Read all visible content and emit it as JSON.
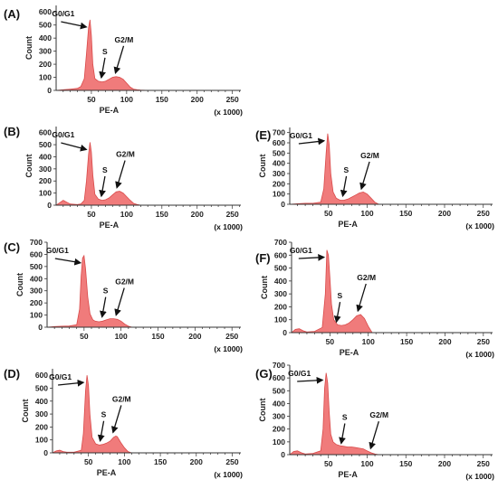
{
  "figure": {
    "panels": [
      "(A)",
      "(B)",
      "(C)",
      "(D)",
      "(E)",
      "(F)",
      "(G)"
    ]
  },
  "colors": {
    "histogram_fill": "#f07b7b",
    "histogram_stroke": "#d94a4a",
    "axis": "#333333",
    "arrow": "#111111"
  },
  "chart_data": [
    {
      "panel": "(A)",
      "type": "area",
      "xlabel": "PE-A",
      "ylabel": "Count",
      "x_unit_note": "(x 1000)",
      "xlim": [
        0,
        262
      ],
      "ylim": [
        0,
        650
      ],
      "xticks": [
        50,
        100,
        150,
        200,
        250
      ],
      "yticks": [
        0,
        100,
        200,
        300,
        400,
        500,
        600
      ],
      "x": [
        0,
        10,
        20,
        30,
        35,
        40,
        43,
        46,
        48,
        50,
        52,
        55,
        60,
        65,
        70,
        75,
        80,
        85,
        90,
        95,
        100,
        105,
        110,
        115,
        120,
        130,
        262
      ],
      "y": [
        0,
        5,
        10,
        15,
        30,
        90,
        280,
        480,
        540,
        420,
        200,
        90,
        70,
        65,
        70,
        85,
        100,
        105,
        100,
        85,
        55,
        25,
        10,
        5,
        2,
        0,
        0
      ],
      "annotations": [
        {
          "text": "G0/G1",
          "x": 48,
          "y": 540
        },
        {
          "text": "S",
          "x": 68,
          "y": 70
        },
        {
          "text": "G2/M",
          "x": 88,
          "y": 105
        }
      ]
    },
    {
      "panel": "(B)",
      "type": "area",
      "xlabel": "PE-A",
      "ylabel": "Count",
      "x_unit_note": "(x 1000)",
      "xlim": [
        0,
        262
      ],
      "ylim": [
        0,
        650
      ],
      "xticks": [
        50,
        100,
        150,
        200,
        250
      ],
      "yticks": [
        0,
        100,
        200,
        300,
        400,
        500,
        600
      ],
      "x": [
        0,
        5,
        10,
        15,
        20,
        30,
        35,
        40,
        43,
        46,
        48,
        50,
        52,
        55,
        60,
        65,
        70,
        75,
        80,
        85,
        90,
        95,
        100,
        105,
        110,
        115,
        120,
        262
      ],
      "y": [
        0,
        20,
        40,
        25,
        10,
        5,
        10,
        40,
        200,
        420,
        520,
        440,
        250,
        90,
        50,
        40,
        45,
        60,
        85,
        110,
        115,
        100,
        70,
        40,
        15,
        5,
        0,
        0
      ],
      "annotations": [
        {
          "text": "G0/G1",
          "x": 48,
          "y": 520
        },
        {
          "text": "S",
          "x": 68,
          "y": 45
        },
        {
          "text": "G2/M",
          "x": 90,
          "y": 115
        }
      ]
    },
    {
      "panel": "(C)",
      "type": "area",
      "xlabel": "",
      "ylabel": "Count",
      "x_unit_note": "(x 1000)",
      "xlim": [
        0,
        262
      ],
      "ylim": [
        0,
        700
      ],
      "xticks": [
        50,
        100,
        150,
        200,
        250
      ],
      "yticks": [
        0,
        100,
        200,
        300,
        400,
        500,
        600,
        700
      ],
      "x": [
        0,
        10,
        20,
        30,
        40,
        44,
        46,
        48,
        50,
        52,
        55,
        58,
        62,
        65,
        70,
        75,
        80,
        85,
        90,
        95,
        100,
        105,
        110,
        115,
        262
      ],
      "y": [
        0,
        5,
        8,
        10,
        20,
        150,
        420,
        570,
        590,
        480,
        250,
        110,
        60,
        50,
        45,
        50,
        60,
        70,
        70,
        65,
        50,
        25,
        8,
        0,
        0
      ],
      "annotations": [
        {
          "text": "G0/G1",
          "x": 50,
          "y": 590
        },
        {
          "text": "S",
          "x": 78,
          "y": 55
        },
        {
          "text": "G2/M",
          "x": 97,
          "y": 70
        }
      ]
    },
    {
      "panel": "(D)",
      "type": "area",
      "xlabel": "PE-A",
      "ylabel": "Count",
      "x_unit_note": "(x 1000)",
      "xlim": [
        0,
        262
      ],
      "ylim": [
        0,
        650
      ],
      "xticks": [
        50,
        100,
        150,
        200,
        250
      ],
      "yticks": [
        0,
        100,
        200,
        300,
        400,
        500,
        600
      ],
      "x": [
        0,
        5,
        10,
        15,
        20,
        30,
        40,
        43,
        46,
        48,
        50,
        52,
        55,
        60,
        65,
        70,
        75,
        80,
        85,
        88,
        90,
        95,
        100,
        105,
        110,
        262
      ],
      "y": [
        0,
        15,
        20,
        10,
        5,
        5,
        20,
        150,
        480,
        600,
        520,
        300,
        120,
        70,
        60,
        65,
        75,
        90,
        120,
        130,
        125,
        80,
        40,
        10,
        0,
        0
      ],
      "annotations": [
        {
          "text": "G0/G1",
          "x": 48,
          "y": 600
        },
        {
          "text": "S",
          "x": 70,
          "y": 65
        },
        {
          "text": "G2/M",
          "x": 88,
          "y": 130
        }
      ]
    },
    {
      "panel": "(E)",
      "type": "area",
      "xlabel": "PE-A",
      "ylabel": "Count",
      "x_unit_note": "(x 1000)",
      "xlim": [
        0,
        262
      ],
      "ylim": [
        0,
        750
      ],
      "xticks": [
        50,
        100,
        150,
        200,
        250
      ],
      "yticks": [
        0,
        100,
        200,
        300,
        400,
        500,
        600,
        700
      ],
      "x": [
        0,
        10,
        20,
        30,
        40,
        44,
        47,
        49,
        51,
        53,
        56,
        60,
        65,
        70,
        75,
        80,
        85,
        90,
        95,
        100,
        105,
        110,
        115,
        262
      ],
      "y": [
        0,
        5,
        10,
        10,
        20,
        150,
        500,
        690,
        580,
        300,
        120,
        60,
        40,
        40,
        50,
        70,
        90,
        110,
        120,
        100,
        60,
        20,
        0,
        0
      ],
      "annotations": [
        {
          "text": "G0/G1",
          "x": 49,
          "y": 690
        },
        {
          "text": "S",
          "x": 72,
          "y": 45
        },
        {
          "text": "G2/M",
          "x": 96,
          "y": 115
        }
      ]
    },
    {
      "panel": "(F)",
      "type": "area",
      "xlabel": "PE-A",
      "ylabel": "Count",
      "x_unit_note": "(x 1000)",
      "xlim": [
        0,
        262
      ],
      "ylim": [
        0,
        700
      ],
      "xticks": [
        50,
        100,
        150,
        200,
        250
      ],
      "yticks": [
        0,
        100,
        200,
        300,
        400,
        500,
        600,
        700
      ],
      "x": [
        0,
        5,
        10,
        15,
        20,
        30,
        40,
        44,
        46,
        48,
        50,
        52,
        55,
        60,
        65,
        70,
        75,
        80,
        85,
        90,
        95,
        100,
        105,
        262
      ],
      "y": [
        0,
        25,
        30,
        15,
        5,
        10,
        40,
        300,
        640,
        600,
        420,
        220,
        100,
        60,
        55,
        60,
        75,
        100,
        130,
        140,
        110,
        50,
        0,
        0
      ],
      "annotations": [
        {
          "text": "G0/G1",
          "x": 47,
          "y": 640
        },
        {
          "text": "S",
          "x": 62,
          "y": 55
        },
        {
          "text": "G2/M",
          "x": 90,
          "y": 140
        }
      ]
    },
    {
      "panel": "(G)",
      "type": "area",
      "xlabel": "PE-A",
      "ylabel": "Count",
      "x_unit_note": "(x 1000)",
      "xlim": [
        0,
        262
      ],
      "ylim": [
        0,
        700
      ],
      "xticks": [
        50,
        100,
        150,
        200,
        250
      ],
      "yticks": [
        0,
        100,
        200,
        300,
        400,
        500,
        600,
        700
      ],
      "x": [
        0,
        5,
        10,
        15,
        20,
        30,
        40,
        43,
        45,
        47,
        49,
        51,
        53,
        56,
        60,
        65,
        70,
        75,
        80,
        85,
        90,
        95,
        100,
        105,
        110,
        115,
        262
      ],
      "y": [
        0,
        25,
        30,
        15,
        5,
        10,
        30,
        200,
        520,
        640,
        560,
        330,
        160,
        100,
        80,
        70,
        65,
        60,
        60,
        55,
        50,
        45,
        30,
        15,
        5,
        0,
        0
      ],
      "annotations": [
        {
          "text": "G0/G1",
          "x": 47,
          "y": 640
        },
        {
          "text": "S",
          "x": 70,
          "y": 60
        },
        {
          "text": "G2/M",
          "x": 108,
          "y": 20
        }
      ]
    }
  ]
}
